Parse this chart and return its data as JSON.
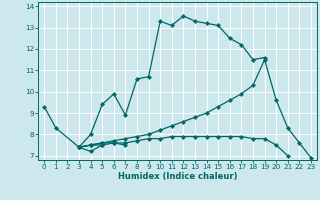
{
  "xlabel": "Humidex (Indice chaleur)",
  "bg_color": "#cce8ec",
  "grid_color": "#ffffff",
  "line_color": "#006666",
  "xlim": [
    -0.5,
    23.5
  ],
  "ylim": [
    6.8,
    14.2
  ],
  "xticks": [
    0,
    1,
    2,
    3,
    4,
    5,
    6,
    7,
    8,
    9,
    10,
    11,
    12,
    13,
    14,
    15,
    16,
    17,
    18,
    19,
    20,
    21,
    22,
    23
  ],
  "yticks": [
    7,
    8,
    9,
    10,
    11,
    12,
    13,
    14
  ],
  "series": [
    {
      "x": [
        0,
        1,
        3,
        4,
        5
      ],
      "y": [
        9.3,
        8.3,
        7.4,
        7.5,
        7.5
      ]
    },
    {
      "x": [
        3,
        4,
        5,
        6,
        7
      ],
      "y": [
        7.4,
        7.2,
        7.5,
        7.6,
        7.5
      ]
    },
    {
      "x": [
        3,
        4,
        5,
        6,
        7,
        8,
        9,
        10,
        11,
        12,
        13,
        14,
        15,
        16,
        17,
        18,
        19
      ],
      "y": [
        7.4,
        8.0,
        9.4,
        9.9,
        8.9,
        10.6,
        10.7,
        13.3,
        13.1,
        13.55,
        13.3,
        13.2,
        13.1,
        12.5,
        12.2,
        11.5,
        11.6
      ]
    },
    {
      "x": [
        3,
        4,
        5,
        6,
        7,
        8,
        9,
        10,
        11,
        12,
        13,
        14,
        15,
        16,
        17,
        18,
        19,
        20,
        21
      ],
      "y": [
        7.4,
        7.5,
        7.6,
        7.6,
        7.6,
        7.7,
        7.8,
        7.8,
        7.9,
        7.9,
        7.9,
        7.9,
        7.9,
        7.9,
        7.9,
        7.8,
        7.8,
        7.5,
        7.0
      ]
    },
    {
      "x": [
        3,
        4,
        5,
        6,
        7,
        8,
        9,
        10,
        11,
        12,
        13,
        14,
        15,
        16,
        17,
        18,
        19,
        20,
        21,
        22,
        23
      ],
      "y": [
        7.4,
        7.5,
        7.6,
        7.7,
        7.8,
        7.9,
        8.0,
        8.2,
        8.4,
        8.6,
        8.8,
        9.0,
        9.3,
        9.6,
        9.9,
        10.3,
        11.5,
        9.6,
        8.3,
        7.6,
        6.9
      ]
    }
  ]
}
